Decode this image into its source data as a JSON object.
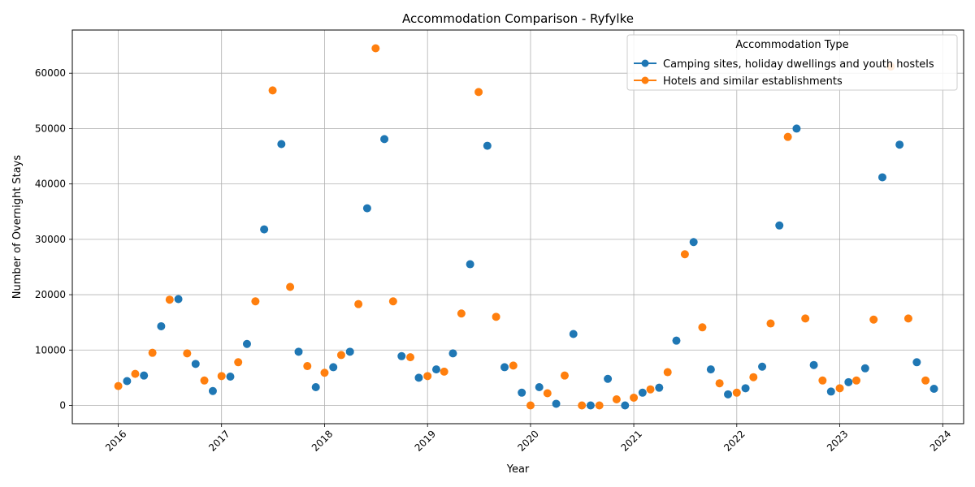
{
  "chart_data": {
    "type": "scatter",
    "title": "Accommodation Comparison - Ryfylke",
    "xlabel": "Year",
    "ylabel": "Number of Overnight Stays",
    "xlim": [
      "2015-07-22",
      "2024-03-15"
    ],
    "ylim": [
      -3300,
      67800
    ],
    "x_ticks": [
      "2016",
      "2017",
      "2018",
      "2019",
      "2020",
      "2021",
      "2022",
      "2023",
      "2024"
    ],
    "y_ticks": [
      0,
      10000,
      20000,
      30000,
      40000,
      50000,
      60000
    ],
    "grid": true,
    "legend": {
      "title": "Accommodation Type",
      "position": "top-right"
    },
    "series": [
      {
        "name": "Camping sites, holiday dwellings and youth hostels",
        "color": "#1f77b4",
        "points": [
          [
            "2016-02-01",
            4400
          ],
          [
            "2016-04-01",
            5400
          ],
          [
            "2016-06-01",
            14300
          ],
          [
            "2016-08-01",
            19200
          ],
          [
            "2016-10-01",
            7500
          ],
          [
            "2016-12-01",
            2600
          ],
          [
            "2017-02-01",
            5200
          ],
          [
            "2017-04-01",
            11100
          ],
          [
            "2017-06-01",
            31800
          ],
          [
            "2017-08-01",
            47200
          ],
          [
            "2017-10-01",
            9700
          ],
          [
            "2017-12-01",
            3300
          ],
          [
            "2018-02-01",
            6900
          ],
          [
            "2018-04-01",
            9700
          ],
          [
            "2018-06-01",
            35600
          ],
          [
            "2018-08-01",
            48100
          ],
          [
            "2018-10-01",
            8900
          ],
          [
            "2018-12-01",
            5000
          ],
          [
            "2019-02-01",
            6500
          ],
          [
            "2019-04-01",
            9400
          ],
          [
            "2019-06-01",
            25500
          ],
          [
            "2019-08-01",
            46900
          ],
          [
            "2019-10-01",
            6900
          ],
          [
            "2019-12-01",
            2300
          ],
          [
            "2020-02-01",
            3300
          ],
          [
            "2020-04-01",
            300
          ],
          [
            "2020-06-01",
            12900
          ],
          [
            "2020-08-01",
            0
          ],
          [
            "2020-10-01",
            4800
          ],
          [
            "2020-12-01",
            0
          ],
          [
            "2021-02-01",
            2300
          ],
          [
            "2021-04-01",
            3200
          ],
          [
            "2021-06-01",
            11700
          ],
          [
            "2021-08-01",
            29500
          ],
          [
            "2021-10-01",
            6500
          ],
          [
            "2021-12-01",
            2000
          ],
          [
            "2022-02-01",
            3100
          ],
          [
            "2022-04-01",
            7000
          ],
          [
            "2022-06-01",
            32500
          ],
          [
            "2022-08-01",
            50000
          ],
          [
            "2022-10-01",
            7300
          ],
          [
            "2022-12-01",
            2500
          ],
          [
            "2023-02-01",
            4200
          ],
          [
            "2023-04-01",
            6700
          ],
          [
            "2023-06-01",
            41200
          ],
          [
            "2023-08-01",
            47100
          ],
          [
            "2023-10-01",
            7800
          ],
          [
            "2023-12-01",
            3000
          ]
        ]
      },
      {
        "name": "Hotels and similar establishments",
        "color": "#ff7f0e",
        "points": [
          [
            "2016-01-01",
            3500
          ],
          [
            "2016-03-01",
            5700
          ],
          [
            "2016-05-01",
            9500
          ],
          [
            "2016-07-01",
            19100
          ],
          [
            "2016-09-01",
            9400
          ],
          [
            "2016-11-01",
            4500
          ],
          [
            "2017-01-01",
            5300
          ],
          [
            "2017-03-01",
            7800
          ],
          [
            "2017-05-01",
            18800
          ],
          [
            "2017-07-01",
            56900
          ],
          [
            "2017-09-01",
            21400
          ],
          [
            "2017-11-01",
            7100
          ],
          [
            "2018-01-01",
            5900
          ],
          [
            "2018-03-01",
            9100
          ],
          [
            "2018-05-01",
            18300
          ],
          [
            "2018-07-01",
            64500
          ],
          [
            "2018-09-01",
            18800
          ],
          [
            "2018-11-01",
            8700
          ],
          [
            "2019-01-01",
            5300
          ],
          [
            "2019-03-01",
            6100
          ],
          [
            "2019-05-01",
            16600
          ],
          [
            "2019-07-01",
            56600
          ],
          [
            "2019-09-01",
            16000
          ],
          [
            "2019-11-01",
            7200
          ],
          [
            "2020-01-01",
            0
          ],
          [
            "2020-03-01",
            2200
          ],
          [
            "2020-05-01",
            5400
          ],
          [
            "2020-07-01",
            0
          ],
          [
            "2020-09-01",
            0
          ],
          [
            "2020-11-01",
            1100
          ],
          [
            "2021-01-01",
            1400
          ],
          [
            "2021-03-01",
            2900
          ],
          [
            "2021-05-01",
            6000
          ],
          [
            "2021-07-01",
            27300
          ],
          [
            "2021-09-01",
            14100
          ],
          [
            "2021-11-01",
            4000
          ],
          [
            "2022-01-01",
            2300
          ],
          [
            "2022-03-01",
            5100
          ],
          [
            "2022-05-01",
            14800
          ],
          [
            "2022-07-01",
            48500
          ],
          [
            "2022-09-01",
            15700
          ],
          [
            "2022-11-01",
            4500
          ],
          [
            "2023-01-01",
            3100
          ],
          [
            "2023-03-01",
            4500
          ],
          [
            "2023-05-01",
            15500
          ],
          [
            "2023-07-01",
            61200
          ],
          [
            "2023-09-01",
            15700
          ],
          [
            "2023-11-01",
            4500
          ]
        ]
      }
    ]
  }
}
